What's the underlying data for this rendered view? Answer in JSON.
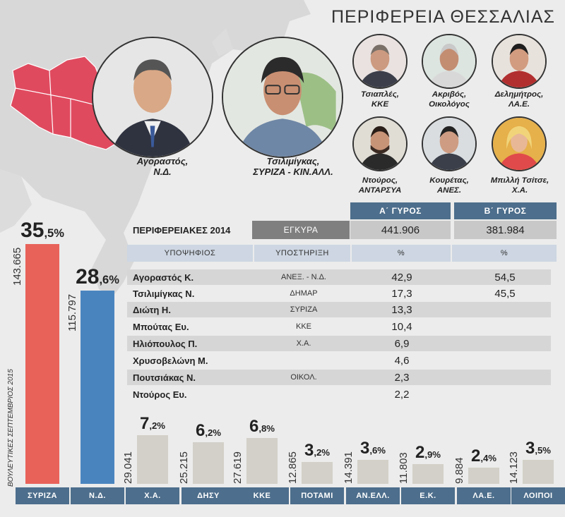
{
  "region_title": "ΠΕΡΙΦΕΡΕΙΑ ΘΕΣΣΑΛΙΑΣ",
  "colors": {
    "syriza": "#e8625a",
    "nd": "#4a84bf",
    "other": "#d2d0c8",
    "header_blue": "#4d6e8c",
    "map_red": "#e04a5f"
  },
  "candidates_main": [
    {
      "name": "Αγοραστός,",
      "party": "Ν.Δ."
    },
    {
      "name": "Τσιλιμίγκας,",
      "party": "ΣΥΡΙΖΑ - ΚΙΝ.ΑΛΛ."
    }
  ],
  "candidates_small": [
    {
      "name": "Τσιαπλές,",
      "party": "ΚΚΕ"
    },
    {
      "name": "Ακριβός,",
      "party": "Οικολόγος"
    },
    {
      "name": "Δελημήτρος,",
      "party": "ΛΑ.Ε."
    },
    {
      "name": "Ντούρος,",
      "party": "ΑΝΤΑΡΣΥΑ"
    },
    {
      "name": "Κουρέτας,",
      "party": "ΑΝΕΣ."
    },
    {
      "name": "Μπιλλή Τσίτσε,",
      "party": "Χ.Α."
    }
  ],
  "regional_table": {
    "title": "ΠΕΡΙΦΕΡΕΙΑΚΕΣ 2014",
    "round1_header": "Α΄ ΓΥΡΟΣ",
    "round2_header": "Β΄ ΓΥΡΟΣ",
    "valid_label": "ΕΓΚΥΡΑ",
    "valid_round1": "441.906",
    "valid_round2": "381.984",
    "col_candidate": "ΥΠΟΨΗΦΙΟΣ",
    "col_support": "ΥΠΟΣΤΗΡΙΞΗ",
    "col_pct1": "%",
    "col_pct2": "%",
    "rows": [
      {
        "name": "Αγοραστός Κ.",
        "support": "ΑΝΕΞ. - Ν.Δ.",
        "pct1": "42,9",
        "pct2": "54,5"
      },
      {
        "name": "Τσιλιμίγκας Ν.",
        "support": "ΔΗΜΑΡ",
        "pct1": "17,3",
        "pct2": "45,5"
      },
      {
        "name": "Διώτη Η.",
        "support": "ΣΥΡΙΖΑ",
        "pct1": "13,3",
        "pct2": ""
      },
      {
        "name": "Μπούτας Ευ.",
        "support": "ΚΚΕ",
        "pct1": "10,4",
        "pct2": ""
      },
      {
        "name": "Ηλιόπουλος Π.",
        "support": "Χ.Α.",
        "pct1": "6,9",
        "pct2": ""
      },
      {
        "name": "Χρυσοβελώνη Μ.",
        "support": "",
        "pct1": "4,6",
        "pct2": ""
      },
      {
        "name": "Πουτσιάκας Ν.",
        "support": "ΟΙΚΟΛ.",
        "pct1": "2,3",
        "pct2": ""
      },
      {
        "name": "Ντούρος Ευ.",
        "support": "",
        "pct1": "2,2",
        "pct2": ""
      }
    ]
  },
  "chart_data": {
    "type": "bar",
    "title": "",
    "side_note": "ΒΟΥΛΕΥΤΙΚΕΣ ΣΕΠΤΕΜΒΡΙΟΣ 2015",
    "categories": [
      "ΣΥΡΙΖΑ",
      "Ν.Δ.",
      "Χ.Α.",
      "ΔΗΣΥ",
      "ΚΚΕ",
      "ΠΟΤΑΜΙ",
      "ΑΝ.ΕΛΛ.",
      "Ε.Κ.",
      "ΛΑ.Ε.",
      "ΛΟΙΠΟΙ"
    ],
    "values": [
      35.5,
      28.6,
      7.2,
      6.2,
      6.8,
      3.2,
      3.6,
      2.9,
      2.4,
      3.5
    ],
    "pct_int": [
      "35",
      "28",
      "7",
      "6",
      "6",
      "3",
      "3",
      "2",
      "2",
      "3"
    ],
    "pct_dec": [
      ",5%",
      ",6%",
      ",2%",
      ",2%",
      ",8%",
      ",2%",
      ",6%",
      ",9%",
      ",4%",
      ",5%"
    ],
    "votes": [
      "143.665",
      "115.797",
      "29.041",
      "25.215",
      "27.619",
      "12.865",
      "14.391",
      "11.803",
      "9.884",
      "14.123"
    ],
    "ylim": [
      0,
      35.5
    ]
  }
}
